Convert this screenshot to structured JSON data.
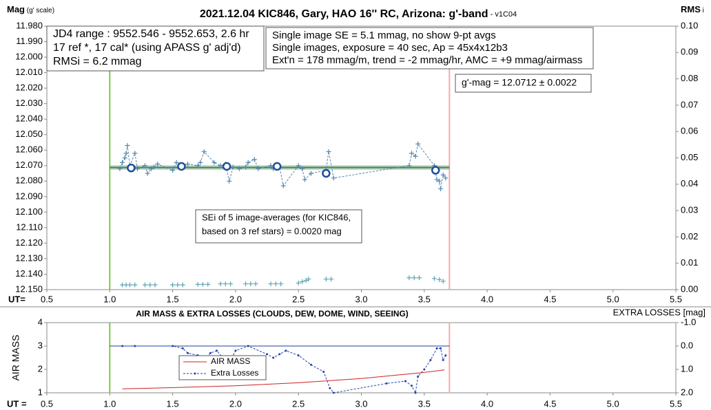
{
  "chart_data": [
    {
      "type": "scatter",
      "title": "2021.12.04 KIC846, Gary, HAO 16'' RC, Arizona: g'-band",
      "subtitle": " - v1C04",
      "y_label": "Mag",
      "y_label_note": " (g' scale)",
      "y2_label": "RMS",
      "y2_label_sub": " i",
      "x_label": "UT=",
      "xlim": [
        0.5,
        5.5
      ],
      "xticks": [
        0.5,
        {
          "value": 1,
          "label": "1.0"
        },
        1.5,
        {
          "value": 2,
          "label": "2.0"
        },
        2.5,
        {
          "value": 3,
          "label": "3.0"
        },
        3.5,
        {
          "value": 4,
          "label": "4.0"
        },
        4.5,
        {
          "value": 5,
          "label": "5.0"
        },
        5.5
      ],
      "ylim": [
        11.98,
        12.15
      ],
      "y_inverted": true,
      "yticks": [
        {
          "value": 11.98,
          "label": "11.980"
        },
        {
          "value": 11.99,
          "label": "11.990"
        },
        {
          "value": 12.0,
          "label": "12.000"
        },
        {
          "value": 12.01,
          "label": "12.010"
        },
        {
          "value": 12.02,
          "label": "12.020"
        },
        {
          "value": 12.03,
          "label": "12.030"
        },
        {
          "value": 12.04,
          "label": "12.040"
        },
        {
          "value": 12.05,
          "label": "12.050"
        },
        {
          "value": 12.06,
          "label": "12.060"
        },
        {
          "value": 12.07,
          "label": "12.070"
        },
        {
          "value": 12.08,
          "label": "12.080"
        },
        {
          "value": 12.09,
          "label": "12.090"
        },
        {
          "value": 12.1,
          "label": "12.100"
        },
        {
          "value": 12.11,
          "label": "12.110"
        },
        {
          "value": 12.12,
          "label": "12.120"
        },
        {
          "value": 12.13,
          "label": "12.130"
        },
        {
          "value": 12.14,
          "label": "12.140"
        },
        {
          "value": 12.15,
          "label": "12.150"
        }
      ],
      "y2lim": [
        0,
        0.1
      ],
      "y2ticks": [
        {
          "value": 0,
          "label": "0.00"
        },
        0.01,
        0.02,
        0.03,
        0.04,
        0.05,
        0.06,
        0.07,
        0.08,
        0.09,
        {
          "value": 0.1,
          "label": "0.10"
        }
      ],
      "vlines": [
        {
          "value": 1.0,
          "color": "#7ac943"
        },
        {
          "value": 3.7,
          "color": "#f5a9a9"
        }
      ],
      "mean_line": {
        "value": 12.0712,
        "color": "#6fa37a"
      },
      "series": [
        {
          "color": "#4f86b0",
          "marker": "plus",
          "line": "dashed",
          "x": [
            1.08,
            1.1,
            1.12,
            1.13,
            1.14,
            1.16,
            1.2,
            1.22,
            1.28,
            1.3,
            1.33,
            1.35,
            1.38,
            1.5,
            1.53,
            1.58,
            1.62,
            1.7,
            1.72,
            1.75,
            1.83,
            1.88,
            1.92,
            1.95,
            1.98,
            2.03,
            2.08,
            2.1,
            2.15,
            2.18,
            2.28,
            2.3,
            2.35,
            2.38,
            2.5,
            2.53,
            2.55,
            2.6,
            2.72,
            2.74,
            2.78,
            3.38,
            3.4,
            3.43,
            3.45,
            3.58,
            3.6,
            3.62,
            3.63,
            3.65,
            3.67
          ],
          "values": [
            12.072,
            12.068,
            12.065,
            12.062,
            12.057,
            12.07,
            12.062,
            12.072,
            12.07,
            12.075,
            12.072,
            12.071,
            12.069,
            12.073,
            12.068,
            12.07,
            12.069,
            12.07,
            12.068,
            12.061,
            12.068,
            12.07,
            12.069,
            12.08,
            12.071,
            12.072,
            12.071,
            12.068,
            12.066,
            12.072,
            12.07,
            12.072,
            12.071,
            12.083,
            12.07,
            12.072,
            12.079,
            12.075,
            12.073,
            12.061,
            12.078,
            12.07,
            12.062,
            12.064,
            12.056,
            12.07,
            12.079,
            12.08,
            12.085,
            12.076,
            12.078
          ]
        },
        {
          "color": "#1f4e9c",
          "marker": "circle",
          "x": [
            1.17,
            1.57,
            1.93,
            2.33,
            2.72,
            3.59
          ],
          "values": [
            12.0715,
            12.0705,
            12.0705,
            12.0705,
            12.075,
            12.073
          ]
        },
        {
          "color": "#5ba3b5",
          "marker": "plus",
          "axis": "y2",
          "x": [
            1.1,
            1.13,
            1.16,
            1.2,
            1.28,
            1.32,
            1.36,
            1.5,
            1.54,
            1.58,
            1.7,
            1.74,
            1.78,
            1.88,
            1.92,
            1.96,
            2.08,
            2.12,
            2.16,
            2.28,
            2.32,
            2.36,
            2.5,
            2.53,
            2.56,
            2.58,
            2.72,
            2.76,
            3.38,
            3.42,
            3.46,
            3.58,
            3.62,
            3.65
          ],
          "values": [
            0.0018,
            0.0018,
            0.0018,
            0.0018,
            0.0018,
            0.0018,
            0.0018,
            0.0018,
            0.0018,
            0.0018,
            0.002,
            0.002,
            0.002,
            0.0022,
            0.0022,
            0.0022,
            0.0022,
            0.0022,
            0.0022,
            0.0022,
            0.0022,
            0.0022,
            0.0025,
            0.003,
            0.0035,
            0.004,
            0.004,
            0.004,
            0.0045,
            0.0045,
            0.0045,
            0.0042,
            0.0038,
            0.0032
          ]
        }
      ],
      "annotations": [
        {
          "lines": [
            "JD4 range : 9552.546 - 9552.653,  2.6  hr",
            "17 ref *, 17 cal* (using APASS g' adj'd)",
            "RMSi = 6.2 mmag"
          ]
        },
        {
          "lines": [
            "Single image SE = 5.1 mmag, no show  9-pt avgs",
            "Single images, exposure = 40 sec, Ap = 45x4x12b3",
            "Ext'n = 178 mmag/m, trend = -2 mmag/hr, AMC = +9 mmag/airmass"
          ]
        },
        {
          "lines": [
            "g'-mag = 12.0712 ± 0.0022"
          ]
        },
        {
          "lines": [
            "SEi of 5 image-averages (for KIC846,",
            "based on 3 ref stars) = 0.0020 mag"
          ]
        }
      ]
    },
    {
      "type": "line",
      "title": "AIR MASS & EXTRA LOSSES (CLOUDS, DEW, DOME, WIND, SEEING)",
      "y_label": "AIR MASS",
      "y2_label": "EXTRA LOSSES [mag]",
      "x_label": "UT =",
      "xlim": [
        0.5,
        5.5
      ],
      "xticks": [
        0.5,
        {
          "value": 1,
          "label": "1.0"
        },
        1.5,
        {
          "value": 2,
          "label": "2.0"
        },
        2.5,
        {
          "value": 3,
          "label": "3.0"
        },
        3.5,
        {
          "value": 4,
          "label": "4.0"
        },
        4.5,
        {
          "value": 5,
          "label": "5.0"
        },
        5.5
      ],
      "ylim": [
        1,
        4
      ],
      "yticks": [
        1,
        2,
        3,
        4
      ],
      "y2lim": [
        -1,
        2
      ],
      "y2_inverted": true,
      "y2ticks": [
        {
          "value": -1,
          "label": "-1.0"
        },
        {
          "value": 0,
          "label": "0.0"
        },
        {
          "value": 1,
          "label": "1.0"
        },
        {
          "value": 2,
          "label": "2.0"
        }
      ],
      "vlines": [
        {
          "value": 1.0,
          "color": "#7ac943"
        },
        {
          "value": 3.7,
          "color": "#f5a9a9"
        }
      ],
      "reference_line_y2": {
        "value": 0,
        "color": "#1f3f8f"
      },
      "series": [
        {
          "name": "AIR MASS",
          "color": "#d02020",
          "line": "solid",
          "x": [
            1.1,
            1.5,
            2.0,
            2.5,
            3.0,
            3.5,
            3.66
          ],
          "values": [
            1.17,
            1.22,
            1.3,
            1.43,
            1.61,
            1.87,
            1.98
          ]
        },
        {
          "name": "Extra Losses",
          "color": "#1f3fb5",
          "line": "dashed",
          "marker": "dot",
          "axis": "y2",
          "x": [
            1.1,
            1.2,
            1.5,
            1.58,
            1.62,
            1.7,
            1.75,
            1.8,
            1.85,
            1.9,
            1.95,
            2.0,
            2.1,
            2.25,
            2.3,
            2.35,
            2.4,
            2.5,
            2.6,
            2.7,
            2.75,
            2.78,
            3.2,
            3.35,
            3.4,
            3.43,
            3.45,
            3.5,
            3.55,
            3.6,
            3.63,
            3.65,
            3.67
          ],
          "values": [
            0.0,
            0.0,
            0.0,
            0.1,
            0.3,
            0.4,
            0.6,
            0.3,
            0.2,
            0.5,
            0.7,
            0.2,
            0.0,
            0.35,
            0.5,
            0.35,
            0.2,
            0.4,
            0.8,
            1.1,
            1.8,
            2.0,
            1.6,
            1.5,
            1.7,
            2.0,
            1.3,
            1.0,
            0.6,
            0.1,
            0.1,
            0.6,
            0.4
          ]
        }
      ]
    }
  ]
}
